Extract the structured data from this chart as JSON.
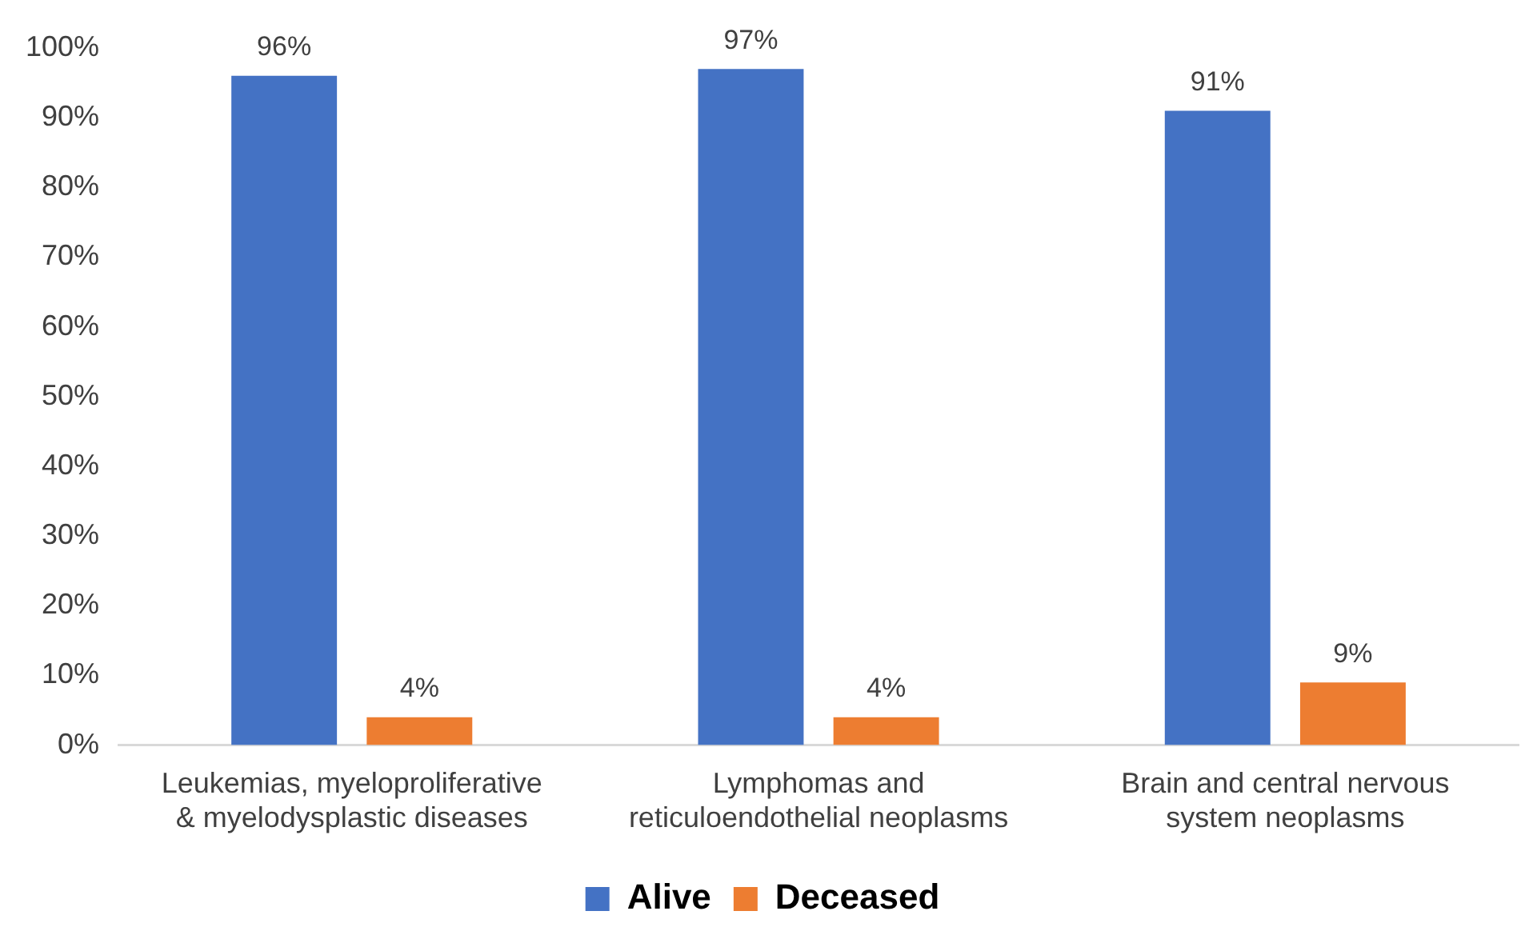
{
  "chart_data": {
    "type": "bar",
    "categories": [
      "Leukemias, myeloproliferative\n& myelodysplastic diseases",
      "Lymphomas and\nreticuloendothelial neoplasms",
      "Brain and central nervous\nsystem neoplasms"
    ],
    "series": [
      {
        "name": "Alive",
        "color": "#4472c4",
        "values": [
          96,
          97,
          91
        ],
        "value_labels": [
          "96%",
          "97%",
          "91%"
        ]
      },
      {
        "name": "Deceased",
        "color": "#ed7d31",
        "values": [
          4,
          4,
          9
        ],
        "value_labels": [
          "4%",
          "4%",
          "9%"
        ]
      }
    ],
    "ylim": [
      0,
      100
    ],
    "yticks": [
      {
        "value": 0,
        "label": "0%"
      },
      {
        "value": 10,
        "label": "10%"
      },
      {
        "value": 20,
        "label": "20%"
      },
      {
        "value": 30,
        "label": "30%"
      },
      {
        "value": 40,
        "label": "40%"
      },
      {
        "value": 50,
        "label": "50%"
      },
      {
        "value": 60,
        "label": "60%"
      },
      {
        "value": 70,
        "label": "70%"
      },
      {
        "value": 80,
        "label": "80%"
      },
      {
        "value": 90,
        "label": "90%"
      },
      {
        "value": 100,
        "label": "100%"
      }
    ],
    "grid": false,
    "legend": "bottom"
  }
}
